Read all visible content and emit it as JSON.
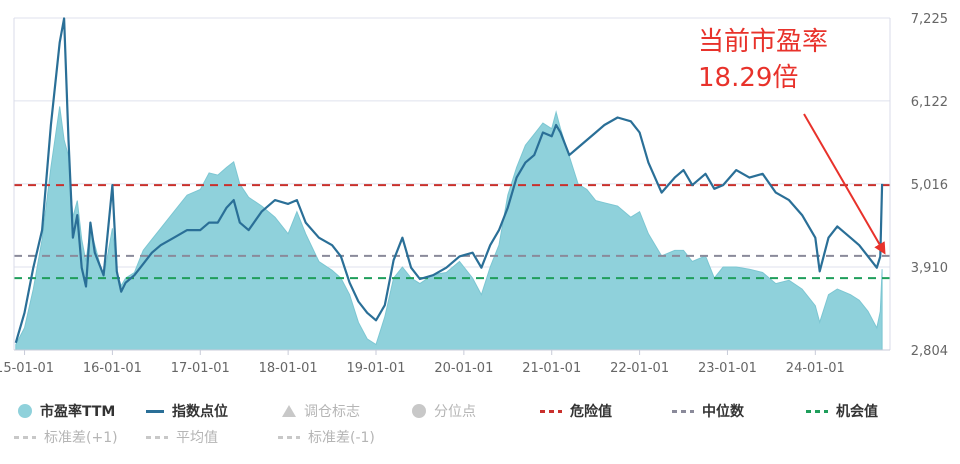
{
  "chart_data": {
    "type": "area",
    "x_ticks": [
      "15-01-01",
      "16-01-01",
      "17-01-01",
      "18-01-01",
      "19-01-01",
      "20-01-01",
      "21-01-01",
      "22-01-01",
      "23-01-01",
      "24-01-01"
    ],
    "y_ticks_right": [
      "7,225",
      "6,122",
      "5,016",
      "3,910",
      "2,804"
    ],
    "ylim_right": [
      2804,
      7225
    ],
    "x_range": [
      2014.88,
      2024.85
    ],
    "pe_range": [
      11.0,
      41.0
    ],
    "series": [
      {
        "name": "市盈率TTM",
        "style": "area",
        "color": "#8fd1db",
        "points": [
          [
            2014.9,
            11.5
          ],
          [
            2015.0,
            13.0
          ],
          [
            2015.1,
            16.5
          ],
          [
            2015.2,
            21.0
          ],
          [
            2015.3,
            27.5
          ],
          [
            2015.4,
            33.0
          ],
          [
            2015.45,
            30.0
          ],
          [
            2015.5,
            28.5
          ],
          [
            2015.55,
            23.0
          ],
          [
            2015.6,
            24.5
          ],
          [
            2015.65,
            21.0
          ],
          [
            2015.7,
            19.0
          ],
          [
            2015.75,
            22.0
          ],
          [
            2015.8,
            20.5
          ],
          [
            2015.9,
            17.5
          ],
          [
            2016.0,
            22.0
          ],
          [
            2016.05,
            18.0
          ],
          [
            2016.1,
            16.8
          ],
          [
            2016.15,
            17.5
          ],
          [
            2016.25,
            18.0
          ],
          [
            2016.35,
            20.0
          ],
          [
            2016.45,
            21.0
          ],
          [
            2016.55,
            22.0
          ],
          [
            2016.7,
            23.5
          ],
          [
            2016.85,
            25.0
          ],
          [
            2017.0,
            25.5
          ],
          [
            2017.1,
            27.0
          ],
          [
            2017.2,
            26.8
          ],
          [
            2017.3,
            27.5
          ],
          [
            2017.38,
            28.0
          ],
          [
            2017.45,
            26.0
          ],
          [
            2017.55,
            24.8
          ],
          [
            2017.7,
            24.0
          ],
          [
            2017.85,
            23.0
          ],
          [
            2018.0,
            21.5
          ],
          [
            2018.1,
            23.5
          ],
          [
            2018.2,
            21.5
          ],
          [
            2018.35,
            19.0
          ],
          [
            2018.5,
            18.2
          ],
          [
            2018.6,
            17.5
          ],
          [
            2018.7,
            16.0
          ],
          [
            2018.8,
            13.5
          ],
          [
            2018.9,
            12.0
          ],
          [
            2019.0,
            11.5
          ],
          [
            2019.1,
            14.0
          ],
          [
            2019.2,
            17.5
          ],
          [
            2019.3,
            18.5
          ],
          [
            2019.4,
            17.5
          ],
          [
            2019.5,
            17.0
          ],
          [
            2019.65,
            17.8
          ],
          [
            2019.8,
            18.0
          ],
          [
            2019.95,
            19.0
          ],
          [
            2020.1,
            17.5
          ],
          [
            2020.2,
            16.0
          ],
          [
            2020.3,
            18.5
          ],
          [
            2020.4,
            20.5
          ],
          [
            2020.5,
            25.0
          ],
          [
            2020.6,
            27.5
          ],
          [
            2020.7,
            29.5
          ],
          [
            2020.8,
            30.5
          ],
          [
            2020.9,
            31.5
          ],
          [
            2021.0,
            31.0
          ],
          [
            2021.05,
            32.5
          ],
          [
            2021.1,
            31.0
          ],
          [
            2021.2,
            28.5
          ],
          [
            2021.3,
            26.0
          ],
          [
            2021.4,
            25.5
          ],
          [
            2021.5,
            24.5
          ],
          [
            2021.6,
            24.3
          ],
          [
            2021.75,
            24.0
          ],
          [
            2021.9,
            23.0
          ],
          [
            2022.0,
            23.5
          ],
          [
            2022.1,
            21.5
          ],
          [
            2022.25,
            19.5
          ],
          [
            2022.4,
            20.0
          ],
          [
            2022.5,
            20.0
          ],
          [
            2022.6,
            19.0
          ],
          [
            2022.75,
            19.5
          ],
          [
            2022.85,
            17.5
          ],
          [
            2022.95,
            18.5
          ],
          [
            2023.1,
            18.5
          ],
          [
            2023.25,
            18.3
          ],
          [
            2023.4,
            18.0
          ],
          [
            2023.55,
            17.0
          ],
          [
            2023.7,
            17.3
          ],
          [
            2023.85,
            16.5
          ],
          [
            2024.0,
            15.0
          ],
          [
            2024.05,
            13.5
          ],
          [
            2024.15,
            16.0
          ],
          [
            2024.25,
            16.5
          ],
          [
            2024.4,
            16.0
          ],
          [
            2024.5,
            15.5
          ],
          [
            2024.6,
            14.5
          ],
          [
            2024.7,
            13.0
          ],
          [
            2024.74,
            14.5
          ],
          [
            2024.76,
            18.3
          ]
        ]
      },
      {
        "name": "指数点位",
        "style": "line",
        "color": "#2a6f97",
        "points": [
          [
            2014.9,
            2900
          ],
          [
            2015.0,
            3300
          ],
          [
            2015.1,
            3900
          ],
          [
            2015.2,
            4400
          ],
          [
            2015.3,
            5800
          ],
          [
            2015.4,
            6900
          ],
          [
            2015.45,
            7220
          ],
          [
            2015.5,
            5600
          ],
          [
            2015.55,
            4300
          ],
          [
            2015.6,
            4600
          ],
          [
            2015.65,
            3900
          ],
          [
            2015.7,
            3650
          ],
          [
            2015.75,
            4500
          ],
          [
            2015.8,
            4100
          ],
          [
            2015.9,
            3800
          ],
          [
            2016.0,
            5000
          ],
          [
            2016.05,
            3850
          ],
          [
            2016.1,
            3580
          ],
          [
            2016.15,
            3700
          ],
          [
            2016.25,
            3800
          ],
          [
            2016.35,
            3950
          ],
          [
            2016.45,
            4100
          ],
          [
            2016.55,
            4200
          ],
          [
            2016.7,
            4300
          ],
          [
            2016.85,
            4400
          ],
          [
            2017.0,
            4400
          ],
          [
            2017.1,
            4500
          ],
          [
            2017.2,
            4500
          ],
          [
            2017.3,
            4700
          ],
          [
            2017.38,
            4800
          ],
          [
            2017.45,
            4500
          ],
          [
            2017.55,
            4400
          ],
          [
            2017.7,
            4650
          ],
          [
            2017.85,
            4800
          ],
          [
            2018.0,
            4750
          ],
          [
            2018.1,
            4800
          ],
          [
            2018.2,
            4500
          ],
          [
            2018.35,
            4300
          ],
          [
            2018.5,
            4200
          ],
          [
            2018.6,
            4050
          ],
          [
            2018.7,
            3700
          ],
          [
            2018.8,
            3450
          ],
          [
            2018.9,
            3300
          ],
          [
            2019.0,
            3200
          ],
          [
            2019.1,
            3400
          ],
          [
            2019.2,
            4000
          ],
          [
            2019.3,
            4300
          ],
          [
            2019.4,
            3900
          ],
          [
            2019.5,
            3750
          ],
          [
            2019.65,
            3800
          ],
          [
            2019.8,
            3900
          ],
          [
            2019.95,
            4050
          ],
          [
            2020.1,
            4100
          ],
          [
            2020.2,
            3900
          ],
          [
            2020.3,
            4200
          ],
          [
            2020.4,
            4400
          ],
          [
            2020.5,
            4700
          ],
          [
            2020.6,
            5100
          ],
          [
            2020.7,
            5300
          ],
          [
            2020.8,
            5400
          ],
          [
            2020.9,
            5700
          ],
          [
            2021.0,
            5650
          ],
          [
            2021.05,
            5800
          ],
          [
            2021.1,
            5700
          ],
          [
            2021.2,
            5400
          ],
          [
            2021.3,
            5500
          ],
          [
            2021.4,
            5600
          ],
          [
            2021.5,
            5700
          ],
          [
            2021.6,
            5800
          ],
          [
            2021.75,
            5900
          ],
          [
            2021.9,
            5850
          ],
          [
            2022.0,
            5700
          ],
          [
            2022.1,
            5300
          ],
          [
            2022.25,
            4900
          ],
          [
            2022.4,
            5100
          ],
          [
            2022.5,
            5200
          ],
          [
            2022.6,
            5000
          ],
          [
            2022.75,
            5150
          ],
          [
            2022.85,
            4950
          ],
          [
            2022.95,
            5000
          ],
          [
            2023.1,
            5200
          ],
          [
            2023.25,
            5100
          ],
          [
            2023.4,
            5150
          ],
          [
            2023.55,
            4900
          ],
          [
            2023.7,
            4800
          ],
          [
            2023.85,
            4600
          ],
          [
            2024.0,
            4300
          ],
          [
            2024.05,
            3850
          ],
          [
            2024.15,
            4300
          ],
          [
            2024.25,
            4450
          ],
          [
            2024.4,
            4300
          ],
          [
            2024.5,
            4200
          ],
          [
            2024.6,
            4050
          ],
          [
            2024.7,
            3900
          ],
          [
            2024.74,
            4050
          ],
          [
            2024.76,
            5016
          ]
        ]
      },
      {
        "name": "调仓标志",
        "style": "marker",
        "visible": false
      },
      {
        "name": "分位点",
        "style": "marker",
        "visible": false
      },
      {
        "name": "危险值",
        "style": "dashed",
        "color": "#c9302c",
        "value": 25.9
      },
      {
        "name": "中位数",
        "style": "dashed",
        "color": "#8a8a9a",
        "value": 19.5
      },
      {
        "name": "机会值",
        "style": "dashed",
        "color": "#1f9e5b",
        "value": 17.5
      },
      {
        "name": "标准差(+1)",
        "style": "dashed",
        "visible": false
      },
      {
        "name": "平均值",
        "style": "dashed",
        "visible": false
      },
      {
        "name": "标准差(-1)",
        "style": "dashed",
        "visible": false
      }
    ],
    "annotation": {
      "line1": "当前市盈率",
      "line2": "18.29倍"
    },
    "grid": true,
    "legend_position": "bottom"
  }
}
